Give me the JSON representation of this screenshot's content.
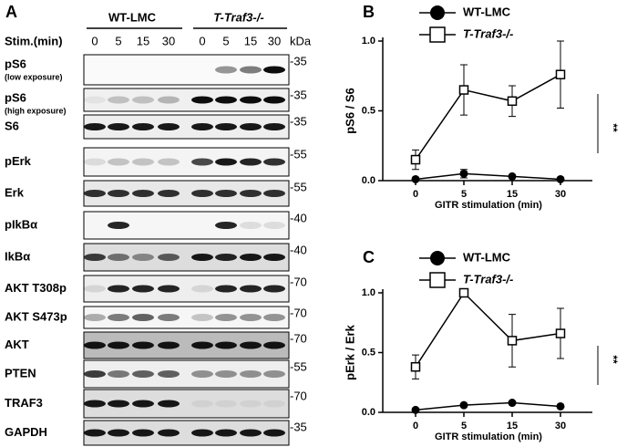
{
  "blot": {
    "panel": "A",
    "groups": [
      "WT-LMC",
      "T-Traf3-/-"
    ],
    "stim_label": "Stim.(min)",
    "kda_label": "kDa",
    "lanes": [
      "0",
      "5",
      "15",
      "30",
      "0",
      "5",
      "15",
      "30"
    ],
    "rows": [
      {
        "label": "pS6",
        "sublabel": "(low exposure)",
        "kda": "-35"
      },
      {
        "label": "pS6",
        "sublabel": "(high exposure)",
        "kda": "-35"
      },
      {
        "label": "S6",
        "kda": "-35"
      },
      {
        "label": "pErk",
        "kda": "-55"
      },
      {
        "label": "Erk",
        "kda": "-55"
      },
      {
        "label": "pIkBα",
        "kda": "-40"
      },
      {
        "label": "IkBα",
        "kda": "-40"
      },
      {
        "label": "AKT T308p",
        "kda": "-70"
      },
      {
        "label": "AKT S473p",
        "kda": "-70"
      },
      {
        "label": "AKT",
        "kda": "-70"
      },
      {
        "label": "PTEN",
        "kda": "-55"
      },
      {
        "label": "TRAF3",
        "kda": "-70"
      },
      {
        "label": "GAPDH",
        "kda": "-35"
      }
    ]
  },
  "chart_data": [
    {
      "type": "line",
      "panel": "B",
      "ylabel": "pS6 / S6",
      "xlabel": "GITR stimulation (min)",
      "categories": [
        "0",
        "5",
        "15",
        "30"
      ],
      "ylim": [
        0,
        1
      ],
      "yticks": [
        {
          "value": 0,
          "label": "0.0"
        },
        {
          "value": 0.5,
          "label": "0.5"
        },
        {
          "value": 1,
          "label": "1.0"
        }
      ],
      "annotation": "**",
      "series": [
        {
          "name": "WT-LMC",
          "color": "#000000",
          "marker": "circle",
          "values": [
            0.01,
            0.05,
            0.03,
            0.01
          ],
          "errors": [
            0.01,
            0.03,
            0.01,
            0.01
          ]
        },
        {
          "name": "T-Traf3-/-",
          "color": "#000000",
          "marker": "square",
          "values": [
            0.15,
            0.65,
            0.57,
            0.76
          ],
          "errors": [
            0.07,
            0.18,
            0.11,
            0.24
          ]
        }
      ]
    },
    {
      "type": "line",
      "panel": "C",
      "ylabel": "pErk / Erk",
      "xlabel": "GITR stimulation (min)",
      "categories": [
        "0",
        "5",
        "15",
        "30"
      ],
      "ylim": [
        0,
        1
      ],
      "yticks": [
        {
          "value": 0,
          "label": "0.0"
        },
        {
          "value": 0.5,
          "label": "0.5"
        },
        {
          "value": 1,
          "label": "1.0"
        }
      ],
      "annotation": "**",
      "series": [
        {
          "name": "WT-LMC",
          "color": "#000000",
          "marker": "circle",
          "values": [
            0.02,
            0.06,
            0.08,
            0.05
          ],
          "errors": [
            0.01,
            0.01,
            0.01,
            0.01
          ]
        },
        {
          "name": "T-Traf3-/-",
          "color": "#000000",
          "marker": "square",
          "values": [
            0.38,
            1.0,
            0.6,
            0.66
          ],
          "errors": [
            0.1,
            0.01,
            0.22,
            0.21
          ]
        }
      ]
    }
  ]
}
